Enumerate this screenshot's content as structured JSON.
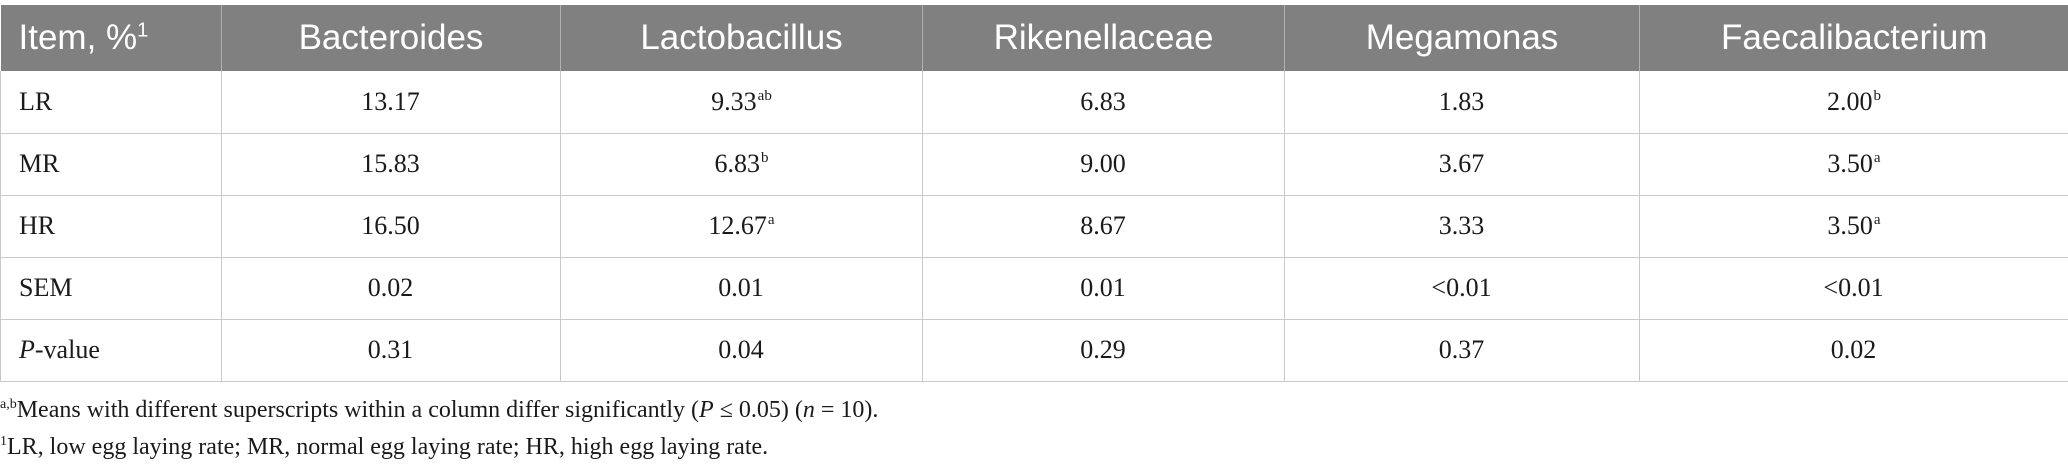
{
  "table": {
    "header": {
      "item": "Item, %",
      "item_sup": "1",
      "columns": [
        "Bacteroides",
        "Lactobacillus",
        "Rikenellaceae",
        "Megamonas",
        "Faecalibacterium"
      ]
    },
    "rows": [
      {
        "label": "LR",
        "cells": [
          {
            "value": "13.17",
            "sup": ""
          },
          {
            "value": "9.33",
            "sup": "ab"
          },
          {
            "value": "6.83",
            "sup": ""
          },
          {
            "value": "1.83",
            "sup": ""
          },
          {
            "value": "2.00",
            "sup": "b"
          }
        ]
      },
      {
        "label": "MR",
        "cells": [
          {
            "value": "15.83",
            "sup": ""
          },
          {
            "value": "6.83",
            "sup": "b"
          },
          {
            "value": "9.00",
            "sup": ""
          },
          {
            "value": "3.67",
            "sup": ""
          },
          {
            "value": "3.50",
            "sup": "a"
          }
        ]
      },
      {
        "label": "HR",
        "cells": [
          {
            "value": "16.50",
            "sup": ""
          },
          {
            "value": "12.67",
            "sup": "a"
          },
          {
            "value": "8.67",
            "sup": ""
          },
          {
            "value": "3.33",
            "sup": ""
          },
          {
            "value": "3.50",
            "sup": "a"
          }
        ]
      },
      {
        "label": "SEM",
        "cells": [
          {
            "value": "0.02",
            "sup": ""
          },
          {
            "value": "0.01",
            "sup": ""
          },
          {
            "value": "0.01",
            "sup": ""
          },
          {
            "value": "<0.01",
            "sup": ""
          },
          {
            "value": "<0.01",
            "sup": ""
          }
        ]
      },
      {
        "label_italic": "P",
        "label_rest": "-value",
        "cells": [
          {
            "value": "0.31",
            "sup": ""
          },
          {
            "value": "0.04",
            "sup": ""
          },
          {
            "value": "0.29",
            "sup": ""
          },
          {
            "value": "0.37",
            "sup": ""
          },
          {
            "value": "0.02",
            "sup": ""
          }
        ]
      }
    ]
  },
  "notes": {
    "note1": {
      "sup": "a,b",
      "text_a": "Means with different superscripts within a column differ significantly (",
      "p": "P",
      "text_b": " ≤ 0.05) (",
      "n": "n",
      "text_c": " = 10)."
    },
    "note2": {
      "sup": "1",
      "text": "LR, low egg laying rate; MR, normal egg laying rate; HR, high egg laying rate."
    }
  }
}
